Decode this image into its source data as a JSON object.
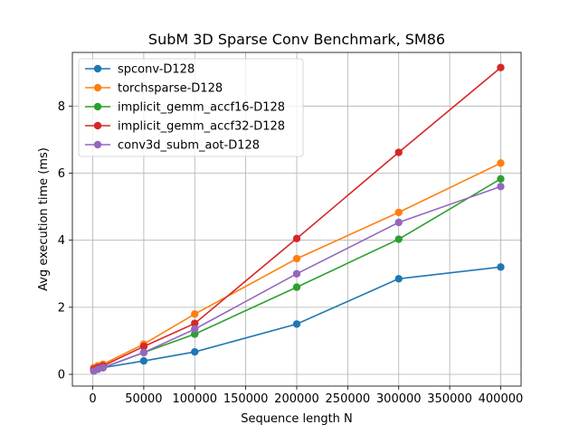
{
  "chart_data": {
    "type": "line",
    "title": "SubM 3D Sparse Conv Benchmark, SM86",
    "xlabel": "Sequence length N",
    "ylabel": "Avg execution time (ms)",
    "xlim": [
      -20000,
      420000
    ],
    "ylim": [
      -0.35,
      9.6
    ],
    "xticks": [
      0,
      50000,
      100000,
      150000,
      200000,
      250000,
      300000,
      350000,
      400000
    ],
    "xtick_labels": [
      "0",
      "50000",
      "100000",
      "150000",
      "200000",
      "250000",
      "300000",
      "350000",
      "400000"
    ],
    "yticks": [
      0,
      2,
      4,
      6,
      8
    ],
    "ytick_labels": [
      "0",
      "2",
      "4",
      "6",
      "8"
    ],
    "grid": true,
    "legend_position": "top-left",
    "x": [
      1000,
      5000,
      10000,
      50000,
      100000,
      200000,
      300000,
      400000
    ],
    "series": [
      {
        "name": "spconv-D128",
        "color": "#1f77b4",
        "values": [
          0.12,
          0.16,
          0.2,
          0.4,
          0.67,
          1.5,
          2.85,
          3.2
        ]
      },
      {
        "name": "torchsparse-D128",
        "color": "#ff7f0e",
        "values": [
          0.2,
          0.25,
          0.3,
          0.9,
          1.8,
          3.45,
          4.83,
          6.3
        ]
      },
      {
        "name": "implicit_gemm_accf16-D128",
        "color": "#2ca02c",
        "values": [
          0.1,
          0.15,
          0.2,
          0.65,
          1.2,
          2.6,
          4.03,
          5.83
        ]
      },
      {
        "name": "implicit_gemm_accf32-D128",
        "color": "#d62728",
        "values": [
          0.15,
          0.2,
          0.25,
          0.83,
          1.52,
          4.05,
          6.62,
          9.15
        ]
      },
      {
        "name": "conv3d_subm_aot-D128",
        "color": "#9467bd",
        "values": [
          0.1,
          0.15,
          0.2,
          0.65,
          1.35,
          3.0,
          4.53,
          5.6
        ]
      }
    ]
  }
}
